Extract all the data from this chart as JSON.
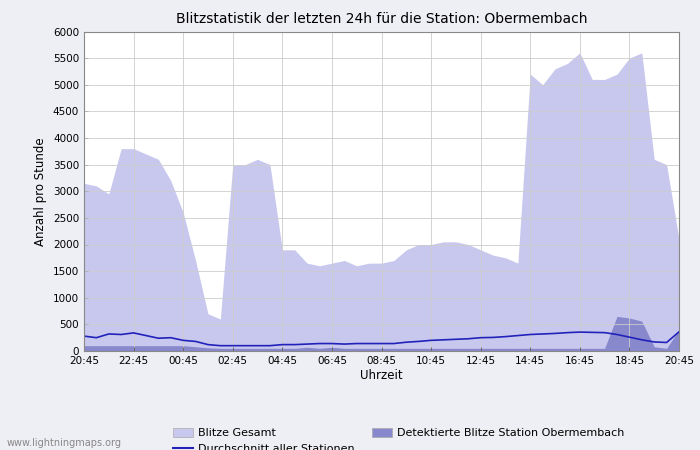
{
  "title": "Blitzstatistik der letzten 24h für die Station: Obermembach",
  "xlabel": "Uhrzeit",
  "ylabel": "Anzahl pro Stunde",
  "xlabels": [
    "20:45",
    "22:45",
    "00:45",
    "02:45",
    "04:45",
    "06:45",
    "08:45",
    "10:45",
    "12:45",
    "14:45",
    "16:45",
    "18:45",
    "20:45"
  ],
  "ylim": [
    0,
    6000
  ],
  "yticks": [
    0,
    500,
    1000,
    1500,
    2000,
    2500,
    3000,
    3500,
    4000,
    4500,
    5000,
    5500,
    6000
  ],
  "background_color": "#eeeef5",
  "plot_bg_color": "#ffffff",
  "fill_gesamt_color": "#c8c8ee",
  "fill_station_color": "#8888cc",
  "line_color": "#2222bb",
  "watermark": "www.lightningmaps.org",
  "legend_blitze_gesamt": "Blitze Gesamt",
  "legend_detektierte": "Detektierte Blitze Station Obermembach",
  "legend_durchschnitt": "Durchschnitt aller Stationen",
  "gesamt": [
    3150,
    3100,
    2950,
    3800,
    3800,
    3700,
    3600,
    3200,
    2600,
    1700,
    700,
    600,
    3500,
    3500,
    3600,
    3500,
    1900,
    1900,
    1650,
    1600,
    1650,
    1700,
    1600,
    1650,
    1650,
    1700,
    1900,
    2000,
    2000,
    2050,
    2050,
    2000,
    1900,
    1800,
    1750,
    1650,
    5200,
    5000,
    5300,
    5400,
    5600,
    5100,
    5100,
    5200,
    5500,
    5600,
    3600,
    3500,
    2100
  ],
  "station": [
    100,
    100,
    100,
    100,
    100,
    100,
    100,
    100,
    100,
    80,
    60,
    50,
    50,
    50,
    50,
    50,
    50,
    50,
    70,
    50,
    70,
    50,
    50,
    50,
    50,
    50,
    50,
    50,
    50,
    50,
    50,
    50,
    50,
    50,
    50,
    50,
    50,
    50,
    50,
    50,
    50,
    50,
    50,
    650,
    620,
    560,
    80,
    50,
    400
  ],
  "avg": [
    280,
    250,
    320,
    310,
    340,
    290,
    240,
    250,
    200,
    180,
    120,
    100,
    100,
    100,
    100,
    100,
    120,
    120,
    130,
    140,
    140,
    130,
    140,
    140,
    140,
    140,
    165,
    180,
    200,
    210,
    220,
    230,
    250,
    255,
    270,
    290,
    310,
    320,
    330,
    345,
    355,
    350,
    345,
    310,
    260,
    210,
    170,
    160,
    360
  ]
}
